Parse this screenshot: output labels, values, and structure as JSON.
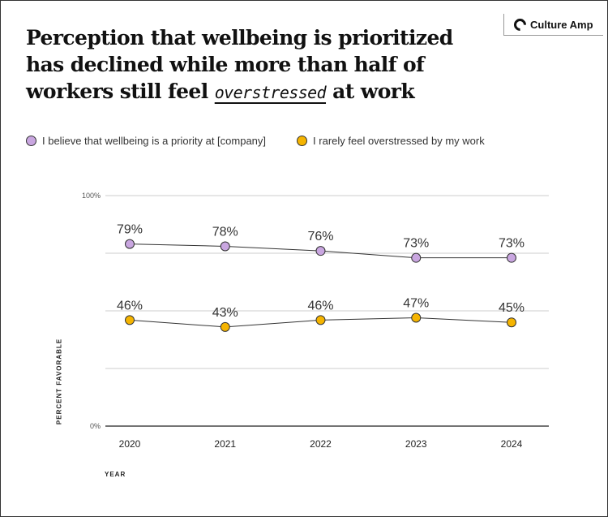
{
  "title": {
    "part1": "Perception that wellbeing is prioritized has declined while more than half of workers still feel ",
    "highlight": "overstressed",
    "part2": " at work"
  },
  "logo": {
    "text": "Culture Amp"
  },
  "chart_data": {
    "type": "line",
    "categories": [
      "2020",
      "2021",
      "2022",
      "2023",
      "2024"
    ],
    "series": [
      {
        "name": "I believe that wellbeing is a priority at [company]",
        "values": [
          79,
          78,
          76,
          73,
          73
        ],
        "labels": [
          "79%",
          "78%",
          "76%",
          "73%",
          "73%"
        ],
        "color": "#c9a6e0"
      },
      {
        "name": "I rarely feel overstressed by my work",
        "values": [
          46,
          43,
          46,
          47,
          45
        ],
        "labels": [
          "46%",
          "43%",
          "46%",
          "47%",
          "45%"
        ],
        "color": "#f5b400"
      }
    ],
    "xlabel": "YEAR",
    "ylabel": "PERCENT FAVORABLE",
    "ylim": [
      0,
      100
    ],
    "yticks": [
      {
        "value": 0,
        "label": "0%"
      },
      {
        "value": 100,
        "label": "100%"
      }
    ],
    "gridlines": [
      0,
      25,
      50,
      75,
      100
    ],
    "legend": "top-left"
  }
}
